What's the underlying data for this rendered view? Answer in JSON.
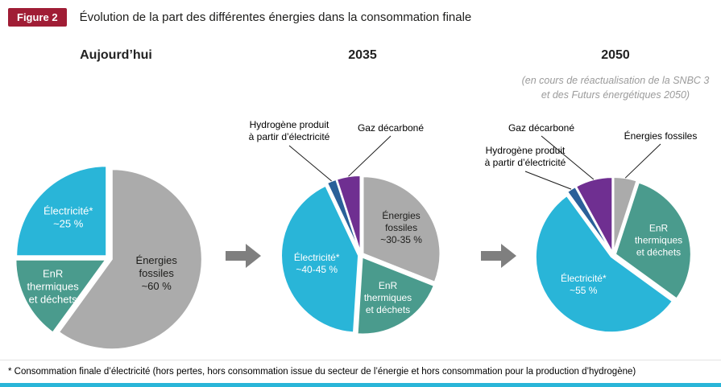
{
  "header": {
    "badge": "Figure 2",
    "title": "Évolution de la part des différentes énergies dans la consommation finale"
  },
  "columns": {
    "c1": "Aujourd’hui",
    "c2": "2035",
    "c3": "2050"
  },
  "note": {
    "line1": "(en cours de réactualisation de la SNBC 3",
    "line2": "et des Futurs énergétiques 2050)"
  },
  "labels": {
    "hydrogen_line1": "Hydrogène produit",
    "hydrogen_line2": "à partir d’électricité",
    "gas": "Gaz décarboné",
    "fossil": "Énergies fossiles"
  },
  "footnote": "* Consommation finale d’électricité (hors pertes, hors consommation issue du secteur de l’énergie et hors consommation pour la production d’hydrogène)",
  "colors": {
    "electricity": "#29b5d8",
    "fossil": "#ababab",
    "enr": "#4a9b8d",
    "gas": "#6f2f91",
    "hydrogen": "#2a6099",
    "badge": "#a01d35",
    "arrow": "#7f7f7f",
    "bottom_bar": "#29b5d8",
    "leader": "#1a1a1a"
  },
  "chart_data": [
    {
      "type": "pie",
      "period": "Aujourd’hui",
      "start_angle": 0,
      "slices": [
        {
          "name": "Énergies fossiles",
          "value": 60,
          "share_text": "~60 %",
          "color": "fossil",
          "label_lines": [
            "Énergies",
            "fossiles",
            "~60 %"
          ],
          "label_color": "#1d1d1b",
          "label_r": 0.52
        },
        {
          "name": "EnR thermiques et déchets",
          "value": 15,
          "color": "enr",
          "label_lines": [
            "EnR",
            "thermiques",
            "et déchets"
          ],
          "label_color": "#ffffff",
          "label_r": 0.66
        },
        {
          "name": "Électricité*",
          "value": 25,
          "share_text": "~25 %",
          "color": "electricity",
          "label_lines": [
            "Électricité*",
            "~25 %"
          ],
          "label_color": "#ffffff",
          "label_r": 0.6
        }
      ]
    },
    {
      "type": "pie",
      "period": "2035",
      "start_angle": 0,
      "slices": [
        {
          "name": "Énergies fossiles",
          "value": 31,
          "share_text": "~30-35 %",
          "color": "fossil",
          "label_lines": [
            "Énergies",
            "fossiles",
            "~30-35 %"
          ],
          "label_color": "#1d1d1b",
          "label_r": 0.6
        },
        {
          "name": "EnR thermiques et déchets",
          "value": 20,
          "color": "enr",
          "label_lines": [
            "EnR",
            "thermiques",
            "et déchets"
          ],
          "label_color": "#ffffff",
          "label_r": 0.62
        },
        {
          "name": "Électricité*",
          "value": 42,
          "share_text": "~40-45 %",
          "color": "electricity",
          "label_lines": [
            "Électricité*",
            "~40-45 %"
          ],
          "label_color": "#ffffff",
          "label_r": 0.55
        },
        {
          "name": "Hydrogène produit à partir d’électricité",
          "value": 2,
          "color": "hydrogen"
        },
        {
          "name": "Gaz décarboné",
          "value": 5,
          "color": "gas"
        }
      ]
    },
    {
      "type": "pie",
      "period": "2050",
      "start_angle": 0,
      "slices": [
        {
          "name": "Énergies fossiles",
          "value": 5,
          "color": "fossil"
        },
        {
          "name": "EnR thermiques et déchets",
          "value": 30,
          "color": "enr",
          "label_lines": [
            "EnR",
            "thermiques",
            "et déchets"
          ],
          "label_color": "#ffffff",
          "label_r": 0.6
        },
        {
          "name": "Électricité*",
          "value": 55,
          "share_text": "~55 %",
          "color": "electricity",
          "label_lines": [
            "Électricité*",
            "~55 %"
          ],
          "label_color": "#ffffff",
          "label_r": 0.52
        },
        {
          "name": "Hydrogène produit à partir d’électricité",
          "value": 2,
          "color": "hydrogen"
        },
        {
          "name": "Gaz décarboné",
          "value": 8,
          "color": "gas"
        }
      ]
    }
  ]
}
